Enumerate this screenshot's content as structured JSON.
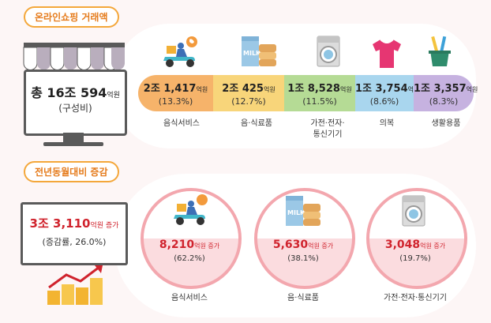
{
  "section1": {
    "title": "온라인쇼핑 거래액",
    "total": {
      "value": "총 16조 594",
      "unit": "억원",
      "sub": "(구성비)"
    },
    "items": [
      {
        "value": "2조 1,417",
        "unit": "억원",
        "pct": "(13.3%)",
        "label": "음식서비스",
        "label2": "",
        "icon": "delivery-scooter-icon",
        "color": "#f6b36a"
      },
      {
        "value": "2조 425",
        "unit": "억원",
        "pct": "(12.7%)",
        "label": "음·식료품",
        "label2": "",
        "icon": "milk-icon",
        "color": "#f8d57a"
      },
      {
        "value": "1조 8,528",
        "unit": "억원",
        "pct": "(11.5%)",
        "label": "가전·전자·",
        "label2": "통신기기",
        "icon": "washing-machine-icon",
        "color": "#b5db95"
      },
      {
        "value": "1조 3,754",
        "unit": "억원",
        "pct": "(8.6%)",
        "label": "의복",
        "label2": "",
        "icon": "shirt-icon",
        "color": "#a9d6ee"
      },
      {
        "value": "1조 3,357",
        "unit": "억원",
        "pct": "(8.3%)",
        "label": "생활용품",
        "label2": "",
        "icon": "toothbrush-cup-icon",
        "color": "#c6b2e0"
      }
    ]
  },
  "section2": {
    "title": "전년동월대비 증감",
    "total": {
      "value": "3조 3,110",
      "unit": "억원 증가",
      "sub": "(증감률, 26.0%)"
    },
    "items": [
      {
        "value": "8,210",
        "unit": "억원 증가",
        "pct": "(62.2%)",
        "label": "음식서비스",
        "icon": "delivery-scooter-icon"
      },
      {
        "value": "5,630",
        "unit": "억원 증가",
        "pct": "(38.1%)",
        "label": "음·식료품",
        "icon": "milk-icon"
      },
      {
        "value": "3,048",
        "unit": "억원 증가",
        "pct": "(19.7%)",
        "label": "가전·전자·통신기기",
        "icon": "washing-machine-icon"
      }
    ]
  }
}
